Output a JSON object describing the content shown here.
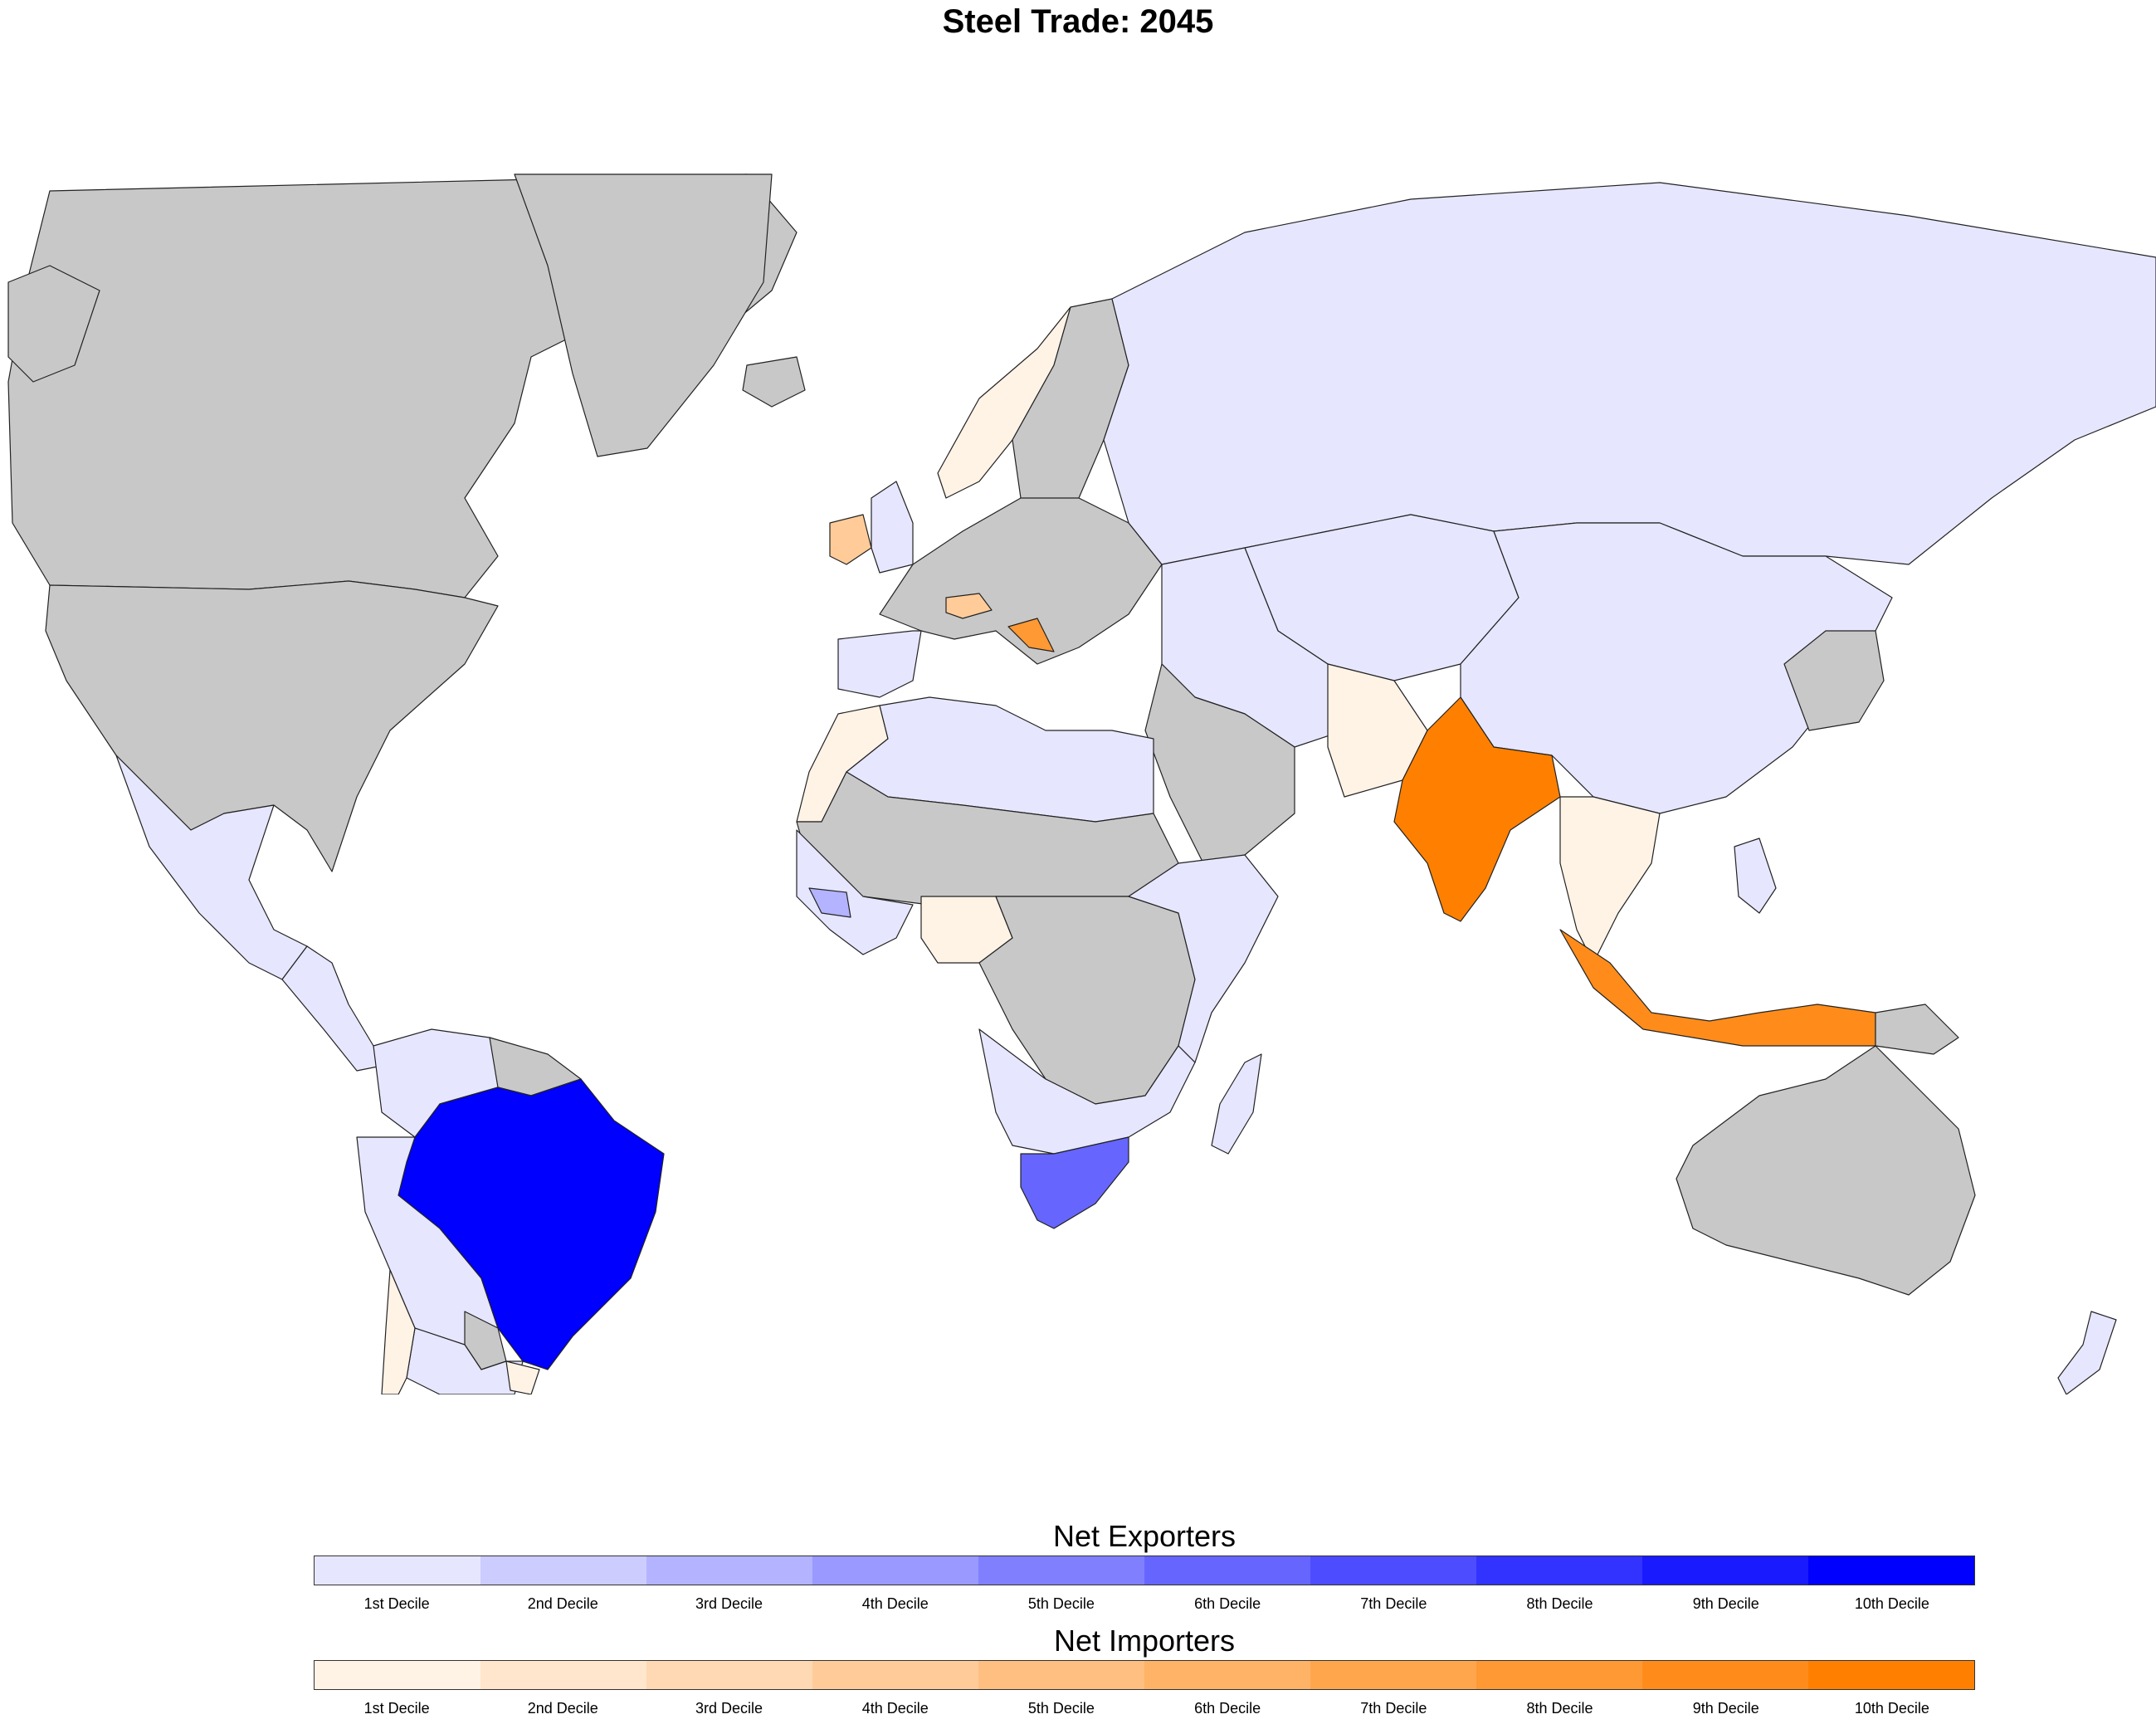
{
  "title": "Steel Trade: 2045",
  "colors": {
    "no_data": "#c8c8c8",
    "ocean": "#ffffff",
    "border": "#222222"
  },
  "legend": {
    "exporters": {
      "title": "Net Exporters",
      "colors": [
        "#e6e6ff",
        "#ccccff",
        "#b3b3ff",
        "#9999ff",
        "#8080ff",
        "#6666ff",
        "#4d4dff",
        "#3333ff",
        "#1a1aff",
        "#0000ff"
      ],
      "labels": [
        "1st Decile",
        "2nd Decile",
        "3rd Decile",
        "4th Decile",
        "5th Decile",
        "6th Decile",
        "7th Decile",
        "8th Decile",
        "9th Decile",
        "10th Decile"
      ]
    },
    "importers": {
      "title": "Net Importers",
      "colors": [
        "#fff3e6",
        "#ffe6cc",
        "#ffd9b3",
        "#ffcc99",
        "#ffbf80",
        "#ffb366",
        "#ffa64d",
        "#ff9933",
        "#ff8c1a",
        "#ff8000"
      ],
      "labels": [
        "1st Decile",
        "2nd Decile",
        "3rd Decile",
        "4th Decile",
        "5th Decile",
        "6th Decile",
        "7th Decile",
        "8th Decile",
        "9th Decile",
        "10th Decile"
      ]
    }
  },
  "regions": [
    {
      "name": "canada",
      "category": "no_data"
    },
    {
      "name": "usa",
      "category": "no_data"
    },
    {
      "name": "alaska",
      "category": "no_data"
    },
    {
      "name": "greenland",
      "category": "no_data"
    },
    {
      "name": "mexico",
      "category": "exporter",
      "decile": 1
    },
    {
      "name": "central-america",
      "category": "exporter",
      "decile": 1
    },
    {
      "name": "colombia-venezuela",
      "category": "exporter",
      "decile": 1
    },
    {
      "name": "guianas",
      "category": "no_data"
    },
    {
      "name": "brazil",
      "category": "exporter",
      "decile": 10
    },
    {
      "name": "peru-bolivia",
      "category": "exporter",
      "decile": 1
    },
    {
      "name": "argentina",
      "category": "exporter",
      "decile": 1
    },
    {
      "name": "chile",
      "category": "importer",
      "decile": 1
    },
    {
      "name": "uruguay",
      "category": "importer",
      "decile": 1
    },
    {
      "name": "paraguay",
      "category": "no_data"
    },
    {
      "name": "norway",
      "category": "importer",
      "decile": 1
    },
    {
      "name": "sweden-finland",
      "category": "no_data"
    },
    {
      "name": "iceland",
      "category": "no_data"
    },
    {
      "name": "ireland",
      "category": "importer",
      "decile": 4
    },
    {
      "name": "united-kingdom",
      "category": "exporter",
      "decile": 1
    },
    {
      "name": "western-europe",
      "category": "no_data"
    },
    {
      "name": "iberia",
      "category": "exporter",
      "decile": 1
    },
    {
      "name": "switzerland",
      "category": "importer",
      "decile": 4
    },
    {
      "name": "croatia",
      "category": "importer",
      "decile": 8
    },
    {
      "name": "russia",
      "category": "exporter",
      "decile": 1
    },
    {
      "name": "central-asia",
      "category": "exporter",
      "decile": 1
    },
    {
      "name": "china",
      "category": "exporter",
      "decile": 1
    },
    {
      "name": "middle-east",
      "category": "exporter",
      "decile": 1
    },
    {
      "name": "arabia",
      "category": "no_data"
    },
    {
      "name": "pakistan",
      "category": "importer",
      "decile": 1
    },
    {
      "name": "india",
      "category": "importer",
      "decile": 10
    },
    {
      "name": "southeast-asia-mainland",
      "category": "importer",
      "decile": 1
    },
    {
      "name": "indonesia",
      "category": "importer",
      "decile": 9
    },
    {
      "name": "japan-korea",
      "category": "no_data"
    },
    {
      "name": "philippines",
      "category": "exporter",
      "decile": 1
    },
    {
      "name": "north-africa",
      "category": "exporter",
      "decile": 1
    },
    {
      "name": "sahel",
      "category": "no_data"
    },
    {
      "name": "morocco",
      "category": "importer",
      "decile": 1
    },
    {
      "name": "west-africa",
      "category": "exporter",
      "decile": 1
    },
    {
      "name": "guinea",
      "category": "exporter",
      "decile": 3
    },
    {
      "name": "nigeria",
      "category": "importer",
      "decile": 1
    },
    {
      "name": "central-africa",
      "category": "no_data"
    },
    {
      "name": "east-africa",
      "category": "exporter",
      "decile": 1
    },
    {
      "name": "southern-africa",
      "category": "exporter",
      "decile": 1
    },
    {
      "name": "south-africa",
      "category": "exporter",
      "decile": 6
    },
    {
      "name": "madagascar",
      "category": "exporter",
      "decile": 1
    },
    {
      "name": "australia",
      "category": "no_data"
    },
    {
      "name": "new-zealand",
      "category": "exporter",
      "decile": 1
    },
    {
      "name": "papua-new-guinea",
      "category": "no_data"
    }
  ]
}
